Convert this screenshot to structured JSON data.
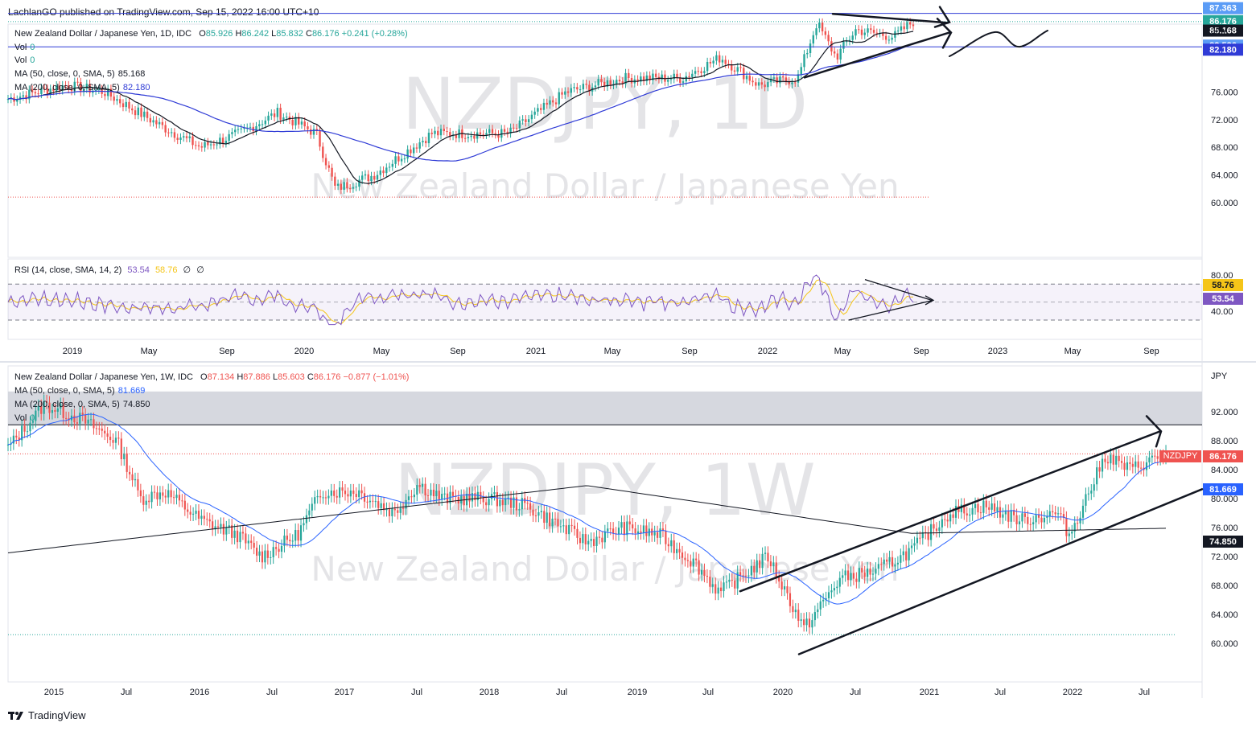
{
  "header": {
    "published": "LachlanGO published on TradingView.com, Sep 15, 2022 16:00 UTC+10"
  },
  "footer": {
    "brand": "TradingView"
  },
  "colors": {
    "up": "#26a69a",
    "down": "#ef5350",
    "ma50_daily": "#131722",
    "ma200_daily": "#2f3bd6",
    "ma50_weekly": "#2962ff",
    "ma200_weekly": "#131722",
    "rsi": "#7e57c2",
    "rsi_ma": "#f5c518"
  },
  "daily": {
    "title_line": "New Zealand Dollar / Japanese Yen, 1D, IDC",
    "ohlc": {
      "o_label": "O",
      "o": "85.926",
      "h_label": "H",
      "h": "86.242",
      "l_label": "L",
      "l": "85.832",
      "c_label": "C",
      "c": "86.176",
      "chg": "+0.241 (+0.28%)"
    },
    "vol_lines": [
      {
        "label": "Vol",
        "value": "0"
      },
      {
        "label": "Vol",
        "value": "0"
      }
    ],
    "ma50": {
      "label": "MA (50, close, 0, SMA, 5)",
      "value": "85.168"
    },
    "ma200": {
      "label": "MA (200, close, 0, SMA, 5)",
      "value": "82.180"
    },
    "watermark_symbol": "NZDJPY, 1D",
    "watermark_name": "New Zealand Dollar / Japanese Yen",
    "currency": "JPY",
    "y_ticks": [
      "76.000",
      "72.000",
      "68.000",
      "64.000",
      "60.000"
    ],
    "price_tags": [
      {
        "text": "87.363",
        "color": "#5b9cf6"
      },
      {
        "text": "86.176",
        "color": "#26a69a"
      },
      {
        "text": "85.168",
        "color": "#131722"
      },
      {
        "text": "82.536",
        "color": "#5b9cf6"
      },
      {
        "text": "82.180",
        "color": "#2f3bd6"
      }
    ],
    "x_ticks": [
      "2019",
      "May",
      "Sep",
      "2020",
      "May",
      "Sep",
      "2021",
      "May",
      "Sep",
      "2022",
      "May",
      "Sep",
      "2023",
      "May",
      "Sep"
    ]
  },
  "rsi": {
    "label": "RSI (14, close, SMA, 14, 2)",
    "v1": "53.54",
    "v2": "58.76",
    "v3": "∅",
    "v4": "∅",
    "y_ticks": [
      "80.00",
      "40.00"
    ],
    "tags": [
      {
        "text": "58.76",
        "color": "#f5c518"
      },
      {
        "text": "53.54",
        "color": "#7e57c2"
      }
    ]
  },
  "weekly": {
    "title_line": "New Zealand Dollar / Japanese Yen, 1W, IDC",
    "ohlc": {
      "o_label": "O",
      "o": "87.134",
      "h_label": "H",
      "h": "87.886",
      "l_label": "L",
      "l": "85.603",
      "c_label": "C",
      "c": "86.176",
      "chg": "−0.877 (−1.01%)"
    },
    "ma50": {
      "label": "MA (50, close, 0, SMA, 5)",
      "value": "81.669"
    },
    "ma200": {
      "label": "MA (200, close, 0, SMA, 5)",
      "value": "74.850"
    },
    "vol": {
      "label": "Vol",
      "value": "0"
    },
    "watermark_symbol": "NZDJPY, 1W",
    "watermark_name": "New Zealand Dollar / Japanese Yen",
    "currency": "JPY",
    "symbol_tag": "NZDJPY",
    "y_ticks": [
      "92.000",
      "88.000",
      "84.000",
      "80.000",
      "76.000",
      "72.000",
      "68.000",
      "64.000",
      "60.000"
    ],
    "price_tags": [
      {
        "text": "86.176",
        "color": "#ef5350"
      },
      {
        "text": "81.669",
        "color": "#2962ff"
      },
      {
        "text": "74.850",
        "color": "#131722"
      }
    ],
    "x_ticks": [
      "2015",
      "Jul",
      "2016",
      "Jul",
      "2017",
      "Jul",
      "2018",
      "Jul",
      "2019",
      "Jul",
      "2020",
      "Jul",
      "2021",
      "Jul",
      "2022",
      "Jul"
    ]
  },
  "chart_data": [
    {
      "type": "candlestick",
      "title": "New Zealand Dollar / Japanese Yen, 1D, IDC",
      "interval": "1D",
      "last_bar": {
        "open": 85.926,
        "high": 86.242,
        "low": 85.832,
        "close": 86.176,
        "change": 0.241,
        "change_pct": 0.28
      },
      "ylim": [
        58,
        88
      ],
      "x_range": [
        "2018-10",
        "2023-12"
      ],
      "price_path_approx": [
        [
          "2018-10",
          75
        ],
        [
          "2019-01",
          77
        ],
        [
          "2019-03",
          76
        ],
        [
          "2019-06",
          71
        ],
        [
          "2019-08",
          68
        ],
        [
          "2019-10",
          70
        ],
        [
          "2019-12",
          73
        ],
        [
          "2020-02",
          70
        ],
        [
          "2020-03",
          62
        ],
        [
          "2020-05",
          64
        ],
        [
          "2020-08",
          70
        ],
        [
          "2020-12",
          70
        ],
        [
          "2021-03",
          76
        ],
        [
          "2021-06",
          78
        ],
        [
          "2021-09",
          78
        ],
        [
          "2021-11",
          81
        ],
        [
          "2022-01",
          77
        ],
        [
          "2022-03",
          78
        ],
        [
          "2022-04",
          86
        ],
        [
          "2022-05",
          81
        ],
        [
          "2022-06",
          85
        ],
        [
          "2022-08",
          84
        ],
        [
          "2022-09",
          86.2
        ]
      ],
      "series": [
        {
          "name": "MA (50, close, 0, SMA, 5)",
          "last": 85.168
        },
        {
          "name": "MA (200, close, 0, SMA, 5)",
          "last": 82.18
        }
      ],
      "horizontal_levels": [
        87.363,
        82.536
      ]
    },
    {
      "type": "line",
      "title": "RSI (14, close, SMA, 14, 2)",
      "series": [
        {
          "name": "RSI",
          "last": 53.54
        },
        {
          "name": "RSI SMA",
          "last": 58.76
        }
      ],
      "bands": [
        70,
        30
      ],
      "ylim": [
        20,
        90
      ]
    },
    {
      "type": "candlestick",
      "title": "New Zealand Dollar / Japanese Yen, 1W, IDC",
      "interval": "1W",
      "last_bar": {
        "open": 87.134,
        "high": 87.886,
        "low": 85.603,
        "close": 86.176,
        "change": -0.877,
        "change_pct": -1.01
      },
      "ylim": [
        57,
        96
      ],
      "x_range": [
        "2014-09",
        "2022-12"
      ],
      "price_path_approx": [
        [
          "2014-09",
          87
        ],
        [
          "2014-12",
          93
        ],
        [
          "2015-03",
          91
        ],
        [
          "2015-06",
          88
        ],
        [
          "2015-08",
          80
        ],
        [
          "2015-10",
          81
        ],
        [
          "2016-01",
          77
        ],
        [
          "2016-04",
          75
        ],
        [
          "2016-06",
          72
        ],
        [
          "2016-09",
          75
        ],
        [
          "2016-11",
          81
        ],
        [
          "2017-02",
          81
        ],
        [
          "2017-05",
          78
        ],
        [
          "2017-07",
          82
        ],
        [
          "2017-09",
          80
        ],
        [
          "2018-01",
          80
        ],
        [
          "2018-04",
          79
        ],
        [
          "2018-07",
          76
        ],
        [
          "2018-09",
          74
        ],
        [
          "2018-12",
          76
        ],
        [
          "2019-03",
          75
        ],
        [
          "2019-06",
          71
        ],
        [
          "2019-08",
          67
        ],
        [
          "2019-12",
          72
        ],
        [
          "2020-03",
          62
        ],
        [
          "2020-06",
          69
        ],
        [
          "2020-09",
          70
        ],
        [
          "2020-12",
          73
        ],
        [
          "2021-03",
          78
        ],
        [
          "2021-06",
          79
        ],
        [
          "2021-09",
          77
        ],
        [
          "2021-12",
          78
        ],
        [
          "2022-01",
          75
        ],
        [
          "2022-04",
          86
        ],
        [
          "2022-06",
          84
        ],
        [
          "2022-09",
          86.2
        ]
      ],
      "series": [
        {
          "name": "MA (50, close, 0, SMA, 5)",
          "last": 81.669
        },
        {
          "name": "MA (200, close, 0, SMA, 5)",
          "last": 74.85
        }
      ]
    }
  ]
}
